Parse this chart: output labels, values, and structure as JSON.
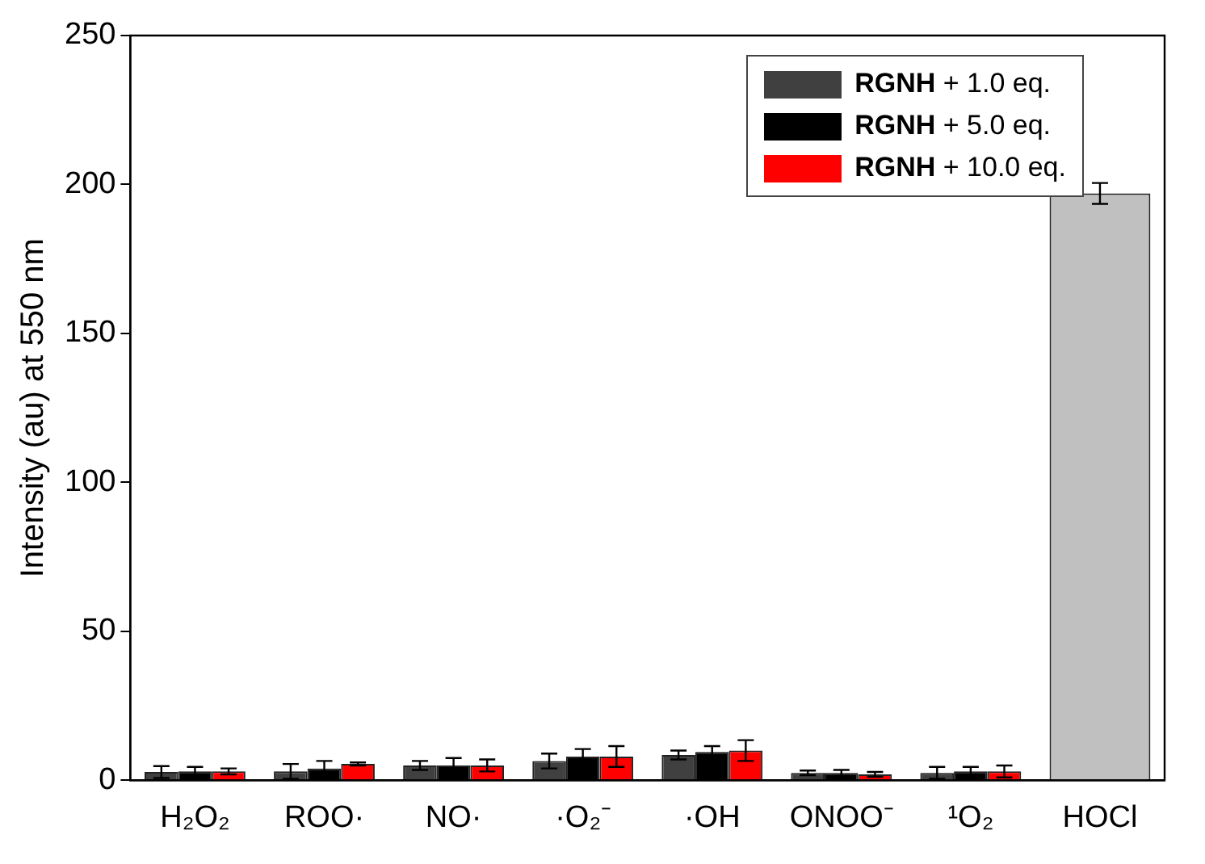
{
  "chart_data": {
    "type": "bar",
    "ylabel": "Intensity (au) at 550 nm",
    "categories": [
      "H₂O₂",
      "ROO·",
      "NO·",
      "·O₂⁻",
      "·OH",
      "ONOO⁻",
      "¹O₂",
      "HOCl"
    ],
    "series": [
      {
        "name": "RGNH + 1.0 eq.",
        "color": "#404040",
        "values": [
          2.8,
          3,
          5,
          6.5,
          8.5,
          2.5,
          2.5,
          null
        ],
        "errors": [
          2,
          2.5,
          1.5,
          2.5,
          1.5,
          0.8,
          2,
          null
        ]
      },
      {
        "name": "RGNH + 5.0 eq.",
        "color": "#000000",
        "values": [
          3,
          4,
          5,
          8,
          9.5,
          2.5,
          3,
          null
        ],
        "errors": [
          1.5,
          2.5,
          2.5,
          2.5,
          2,
          1,
          1.5,
          null
        ]
      },
      {
        "name": "RGNH + 10.0 eq.",
        "color": "#ff0000",
        "values": [
          3,
          5.5,
          5,
          8,
          10,
          2,
          3,
          null
        ],
        "errors": [
          1,
          0.5,
          2,
          3.5,
          3.5,
          0.8,
          2,
          null
        ]
      },
      {
        "color": "#c0c0c0",
        "values": [
          null,
          null,
          null,
          null,
          null,
          null,
          null,
          197
        ],
        "errors": [
          null,
          null,
          null,
          null,
          null,
          null,
          null,
          3.5
        ]
      }
    ],
    "ylim": [
      0,
      250
    ],
    "yticks": [
      0,
      50,
      100,
      150,
      200,
      250
    ],
    "grid": false,
    "legend": "top right"
  }
}
